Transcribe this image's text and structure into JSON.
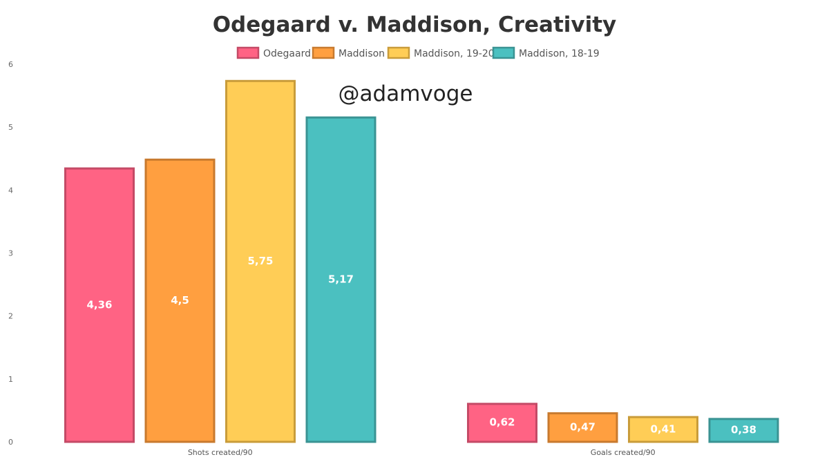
{
  "watermark": "@adamvoge",
  "chart_data": {
    "type": "bar",
    "title": "Odegaard v. Maddison, Creativity",
    "categories": [
      "Shots created/90",
      "Goals created/90"
    ],
    "series": [
      {
        "name": "Odegaard",
        "values": [
          4.36,
          0.62
        ],
        "labels": [
          "4,36",
          "0,62"
        ],
        "color": "#ff6384",
        "border": "#c44a66"
      },
      {
        "name": "Maddison",
        "values": [
          4.5,
          0.47
        ],
        "labels": [
          "4,5",
          "0,47"
        ],
        "color": "#ff9f40",
        "border": "#c87a2e"
      },
      {
        "name": "Maddison, 19-20",
        "values": [
          5.75,
          0.41
        ],
        "labels": [
          "5,75",
          "0,41"
        ],
        "color": "#ffcd56",
        "border": "#c99c3a"
      },
      {
        "name": "Maddison, 18-19",
        "values": [
          5.17,
          0.38
        ],
        "labels": [
          "5,17",
          "0,38"
        ],
        "color": "#4bc0c0",
        "border": "#3a9393"
      }
    ],
    "ylim": [
      0,
      6
    ],
    "yticks": [
      "0",
      "1",
      "2",
      "3",
      "4",
      "5",
      "6"
    ],
    "grid": false,
    "legend": "top"
  }
}
